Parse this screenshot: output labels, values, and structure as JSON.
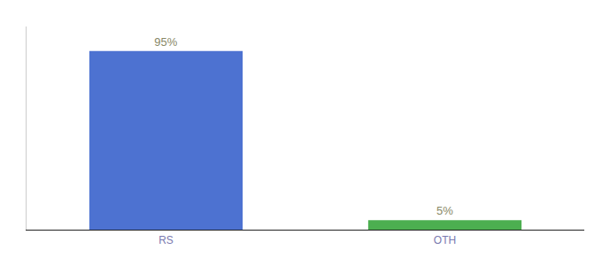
{
  "chart_data": {
    "type": "bar",
    "categories": [
      "RS",
      "OTH"
    ],
    "values": [
      95,
      5
    ],
    "value_labels": [
      "95%",
      "5%"
    ],
    "colors": [
      "#4d72d1",
      "#4caf50"
    ],
    "ylim": [
      0,
      108
    ],
    "grid": false,
    "data_labels": true,
    "tick_labels": "x"
  }
}
